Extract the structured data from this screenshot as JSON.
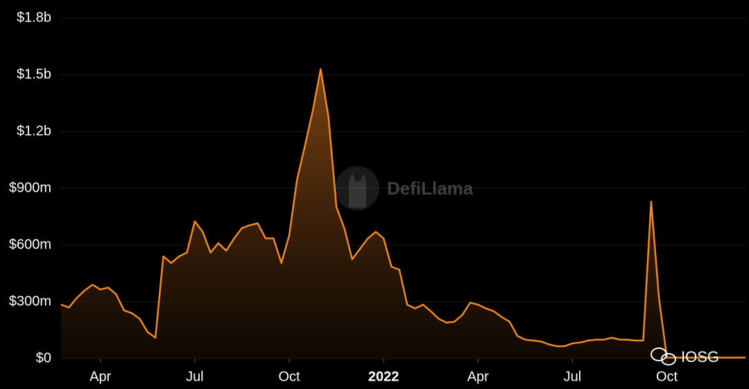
{
  "chart_data": {
    "type": "area",
    "watermark": "DefiLlama",
    "badge": "IOSG",
    "color": "#f08a24",
    "categories": [
      null,
      null,
      null,
      null,
      null,
      "Apr",
      null,
      null,
      null,
      null,
      null,
      null,
      null,
      null,
      null,
      null,
      null,
      "Jul",
      null,
      null,
      null,
      null,
      null,
      null,
      null,
      null,
      null,
      null,
      null,
      "Oct",
      null,
      null,
      null,
      null,
      null,
      null,
      null,
      null,
      null,
      null,
      null,
      "2022",
      null,
      null,
      null,
      null,
      null,
      null,
      null,
      null,
      null,
      null,
      null,
      "Apr",
      null,
      null,
      null,
      null,
      null,
      null,
      null,
      null,
      null,
      null,
      null,
      "Jul",
      null,
      null,
      null,
      null,
      null,
      null,
      null,
      null,
      null,
      null,
      null,
      "Oct",
      null,
      null,
      null,
      null,
      null,
      null,
      null,
      null,
      null,
      null
    ],
    "values": [
      285,
      270,
      320,
      360,
      390,
      365,
      375,
      340,
      255,
      240,
      210,
      140,
      110,
      540,
      505,
      540,
      560,
      725,
      670,
      560,
      610,
      570,
      635,
      690,
      705,
      715,
      635,
      635,
      505,
      650,
      945,
      1125,
      1310,
      1530,
      1275,
      800,
      690,
      525,
      580,
      635,
      670,
      635,
      485,
      470,
      285,
      265,
      285,
      250,
      210,
      190,
      195,
      230,
      295,
      285,
      265,
      250,
      220,
      195,
      120,
      100,
      95,
      90,
      75,
      65,
      65,
      80,
      85,
      95,
      100,
      100,
      110,
      100,
      100,
      95,
      95,
      830,
      320,
      5,
      5,
      5,
      5,
      5,
      5,
      5,
      5,
      5,
      5,
      5
    ],
    "ylim": [
      0,
      1800
    ],
    "yticks": [
      {
        "value": 0,
        "label": "$0"
      },
      {
        "value": 300,
        "label": "$300m"
      },
      {
        "value": 600,
        "label": "$600m"
      },
      {
        "value": 900,
        "label": "$900m"
      },
      {
        "value": 1200,
        "label": "$1.2b"
      },
      {
        "value": 1500,
        "label": "$1.5b"
      },
      {
        "value": 1800,
        "label": "$1.8b"
      }
    ],
    "grid": true
  }
}
